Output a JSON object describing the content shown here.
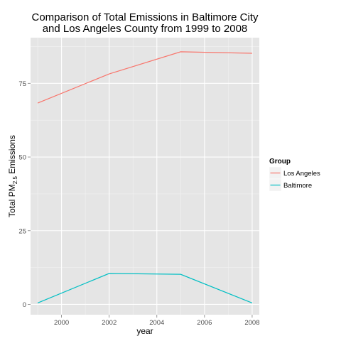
{
  "chart_data": {
    "type": "line",
    "title": [
      "Comparison of Total Emissions in Baltimore City",
      "and Los Angeles County from 1999 to 2008"
    ],
    "xlabel": "year",
    "ylabel": {
      "main": "Total PM",
      "sub": "2.5",
      "rest": " Emissions"
    },
    "x": [
      1999,
      2002,
      2005,
      2008
    ],
    "xlim": [
      1998.7,
      2008.3
    ],
    "xticks": [
      2000,
      2002,
      2004,
      2006,
      2008
    ],
    "xtick_labels": [
      "2000",
      "2002",
      "2004",
      "2006",
      "2008"
    ],
    "ylim": [
      -3.5,
      90.5
    ],
    "yticks": [
      0,
      25,
      50,
      75
    ],
    "ytick_labels": [
      "0",
      "25",
      "50",
      "75"
    ],
    "grid": true,
    "legend": {
      "title": "Group",
      "placement": "right"
    },
    "series": [
      {
        "name": "Los Angeles",
        "color": "#F8766D",
        "values": [
          68.3,
          78.2,
          85.7,
          85.2
        ]
      },
      {
        "name": "Baltimore",
        "color": "#00BFC4",
        "values": [
          0.5,
          10.5,
          10.2,
          0.5
        ]
      }
    ]
  }
}
